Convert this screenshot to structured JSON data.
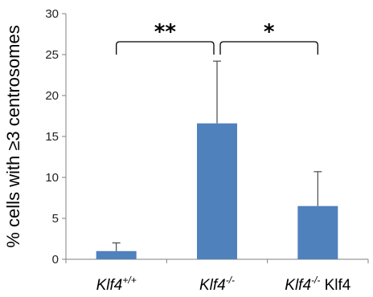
{
  "chart_data": {
    "type": "bar",
    "title": "",
    "xlabel": "",
    "ylabel": "% cells with ≥3 centrosomes",
    "ylim": [
      0,
      30
    ],
    "yticks": [
      "0",
      "5",
      "10",
      "15",
      "20",
      "25",
      "30"
    ],
    "grid": false,
    "bar_color": "#4f81bd",
    "categories": [
      {
        "base": "Klf4",
        "sup": "+/+",
        "suffix": ""
      },
      {
        "base": "Klf4",
        "sup": "-/-",
        "suffix": ""
      },
      {
        "base": "Klf4",
        "sup": "-/-",
        "suffix": " Klf4"
      }
    ],
    "values": [
      1.0,
      16.6,
      6.5
    ],
    "error_upper": [
      2.0,
      24.2,
      10.7
    ],
    "significance": [
      {
        "from": 0,
        "to": 1,
        "label": "**"
      },
      {
        "from": 1,
        "to": 2,
        "label": "*"
      }
    ]
  }
}
